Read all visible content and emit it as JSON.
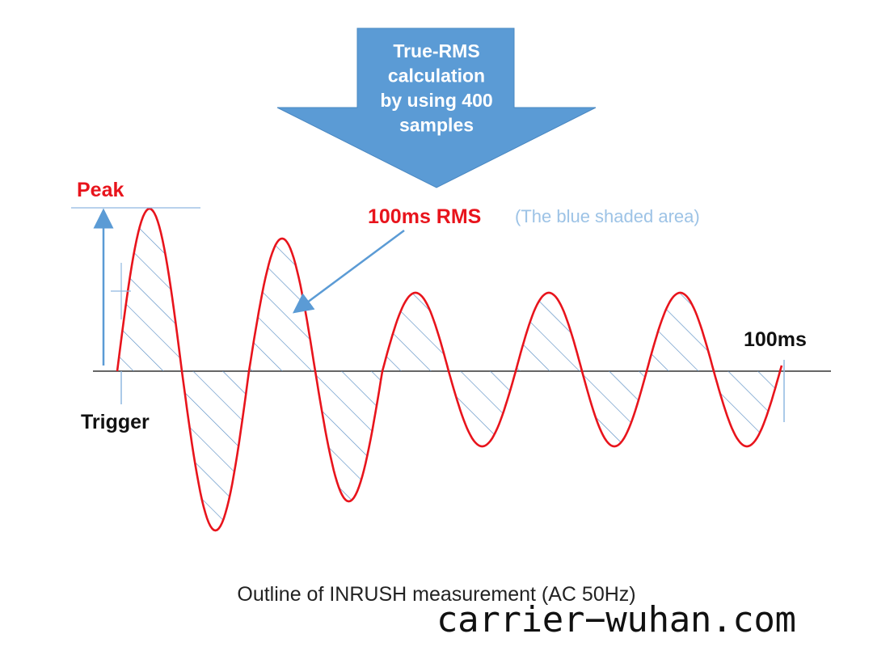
{
  "arrow_box": {
    "lines": [
      "True-RMS",
      "calculation",
      "by using 400",
      "samples"
    ]
  },
  "labels": {
    "peak": "Peak",
    "rms": "100ms RMS",
    "rms_note": "(The blue shaded area)",
    "end": "100ms",
    "trigger": "Trigger"
  },
  "caption": "Outline of INRUSH measurement (AC 50Hz)",
  "watermark": "carrier−wuhan.com"
}
